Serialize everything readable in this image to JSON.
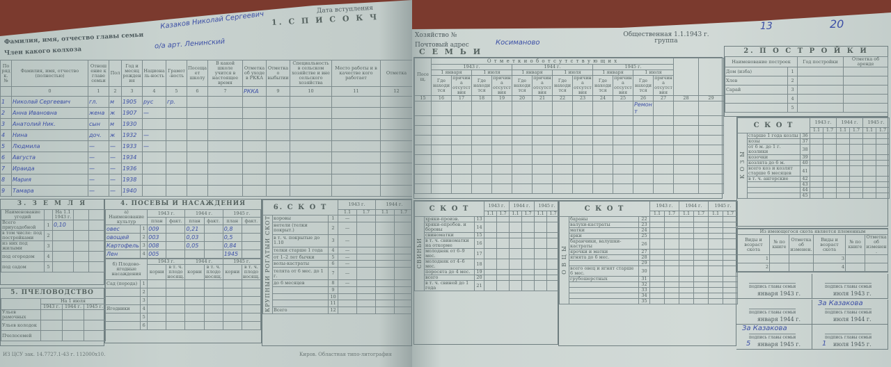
{
  "left_page": {
    "head_name_label": "Фамилия, имя, отчество главы семьи",
    "head_name_value": "Казаков Николай Сергеевич",
    "kolkhoz_label": "Член какого колхоза",
    "kolkhoz_value": "о/а   арт.   Ленинский",
    "entry_date_label": "Дата вступления",
    "section1_title": "1.   С П И С О К   Ч",
    "members": {
      "headers": [
        "Порядк. №",
        "Фамилия, имя, отчество (полностью)",
        "Отношение к главе семьи",
        "Пол",
        "Год и месяц рождения",
        "Националь-ность",
        "Грамот-ность",
        "Посещает школу",
        "В какой школе учится в настоящее время",
        "Отметка об уходе в РККА",
        "Отметка о выбытии",
        "Специальность в сельском хозяйстве и вне сельского хозяйства",
        "Место работы и в качестве кого работает",
        "Отметка"
      ],
      "col_numbers": [
        "",
        "0",
        "1",
        "2",
        "3",
        "4",
        "5",
        "6",
        "7",
        "8",
        "9",
        "10",
        "11",
        "12"
      ],
      "rkka_mark": "РККА",
      "rows": [
        {
          "n": "1",
          "name": "Николай Сергеевич",
          "rel": "гл.",
          "sex": "м",
          "year": "1905",
          "nat": "рус",
          "lit": "гр."
        },
        {
          "n": "2",
          "name": "Анна Ивановна",
          "rel": "жена",
          "sex": "ж",
          "year": "1907",
          "nat": "—",
          "lit": ""
        },
        {
          "n": "3",
          "name": "Анатолий Ник.",
          "rel": "сын",
          "sex": "м",
          "year": "1930",
          "nat": "",
          "lit": ""
        },
        {
          "n": "4",
          "name": "Нина",
          "rel": "доч.",
          "sex": "ж",
          "year": "1932",
          "nat": "—",
          "lit": ""
        },
        {
          "n": "5",
          "name": "Людмила",
          "rel": "—",
          "sex": "—",
          "year": "1933",
          "nat": "—",
          "lit": ""
        },
        {
          "n": "6",
          "name": "Августа",
          "rel": "—",
          "sex": "—",
          "year": "1934",
          "nat": "",
          "lit": ""
        },
        {
          "n": "7",
          "name": "Ираида",
          "rel": "—",
          "sex": "—",
          "year": "1936",
          "nat": "",
          "lit": ""
        },
        {
          "n": "8",
          "name": "Мария",
          "rel": "—",
          "sex": "—",
          "year": "1938",
          "nat": "",
          "lit": ""
        },
        {
          "n": "9",
          "name": "Тамара",
          "rel": "—",
          "sex": "—",
          "year": "1940",
          "nat": "",
          "lit": ""
        }
      ]
    },
    "land": {
      "title": "3.  З Е М Л Я",
      "col_header": "Наименование угодий",
      "col_date": "На 1.1 1943 г.",
      "rows": [
        {
          "label": "Всего приусадебной",
          "n": "1",
          "v": "0,10"
        },
        {
          "label": "в том числе: под постройками",
          "n": "2",
          "v": ""
        },
        {
          "label": "из них под жилыми",
          "n": "3",
          "v": ""
        },
        {
          "label": "под огородом",
          "n": "4",
          "v": ""
        },
        {
          "label": "под садом",
          "n": "5",
          "v": ""
        }
      ]
    },
    "crops": {
      "title": "4. ПОСЕВЫ И НАСАЖДЕНИЯ",
      "sub_a": "а) Наименование культур",
      "years": [
        "1943 г.",
        "1944 г.",
        "1945 г."
      ],
      "plan_fact": [
        "план",
        "факт."
      ],
      "rows": [
        {
          "n": "1",
          "name": "овес",
          "v43": "009",
          "v44": "0,21",
          "v45": "0,8"
        },
        {
          "n": "2",
          "name": "овощей",
          "v43": "003",
          "v44": "0,03",
          "v45": "0,5"
        },
        {
          "n": "3",
          "name": "Картофель",
          "v43": "008",
          "v44": "0,05",
          "v45": "0,84"
        },
        {
          "n": "4",
          "name": "Лен",
          "v43": "005",
          "v44": "",
          "v45": "1945"
        }
      ],
      "sub_b": "б) Плодово-ягодные насаждения",
      "b_cols": [
        "корни",
        "в т. ч. плодоносящ."
      ],
      "b_rows": [
        {
          "n": "1",
          "name": "Сад (порода)"
        },
        {
          "n": "2",
          "name": ""
        },
        {
          "n": "3",
          "name": ""
        },
        {
          "n": "4",
          "name": "Ягодники"
        },
        {
          "n": "5",
          "name": ""
        },
        {
          "n": "6",
          "name": ""
        }
      ]
    },
    "bees": {
      "title": "5.  ПЧЕЛОВОДСТВО",
      "col_header": "На 1 июля",
      "years": [
        "1943 г.",
        "1944 г.",
        "1945 г."
      ],
      "rows": [
        "Ульев рамочных",
        "Ульев колодок",
        "Пчелосемей"
      ]
    },
    "cattle": {
      "title": "6.  С К О Т",
      "side_label": "КРУПНЫЙ РОГАТЫЙ СКОТ",
      "years": [
        "1943 г.",
        "1944 г."
      ],
      "dates": [
        "1.1",
        "1.7"
      ],
      "rows": [
        {
          "n": "1",
          "label": "коровы",
          "v": "—"
        },
        {
          "n": "2",
          "label": "нетели (телки покрыт.)",
          "v": "—"
        },
        {
          "n": "3",
          "label": "в т. ч. покрытые до 1.10",
          "v": "—"
        },
        {
          "n": "4",
          "label": "телки старше 1 года",
          "v": "—"
        },
        {
          "n": "5",
          "label": "от 1–2 лет  бычки",
          "v": "—"
        },
        {
          "n": "6",
          "label": "волы-кастраты",
          "v": "—"
        },
        {
          "n": "7",
          "label": "телята от 6 мес. до 1 г.",
          "v": "—"
        },
        {
          "n": "8",
          "label": "до 6 месяцев",
          "v": "—"
        },
        {
          "n": "9",
          "label": "",
          "v": ""
        },
        {
          "n": "10",
          "label": "",
          "v": ""
        },
        {
          "n": "11",
          "label": "",
          "v": ""
        },
        {
          "n": "12",
          "label": "Всего",
          "v": ""
        }
      ]
    },
    "footer_left": "ИЗ ЦСУ зак. 14.7727.1-43 г. 112000х10.",
    "footer_printer": "Киров. Областная типо-литография"
  },
  "right_page": {
    "household_label": "Хозяйство №",
    "address_label": "Почтовый адрес",
    "address_value": "Косиманово",
    "group_label": "Общественная 1.1.1943 г. группа",
    "group_value_1": "13",
    "group_value_2": "20",
    "family_title": "С Е М Ь И",
    "absence_title": "О т м е т к и   о б   о т с у т с т в у ю щ и х",
    "absence_years": [
      "1943 г.",
      "1944 г.",
      "1945 г."
    ],
    "absence_dates": [
      "1 января",
      "1 июля",
      "1 января",
      "1 июля",
      "1 января",
      "1 июля"
    ],
    "absence_sub": [
      "Где находится",
      "причина отсутствия"
    ],
    "col_numbers": [
      "15",
      "16",
      "17",
      "18",
      "19",
      "20",
      "21",
      "22",
      "23",
      "24",
      "25",
      "26",
      "27",
      "28",
      "29"
    ],
    "absence_mark": "Ремонт",
    "buildings": {
      "title": "2.  П О С Т Р О Й К И",
      "cols": [
        "Наименование построек",
        "Год постройки",
        "Отметка об аренде"
      ],
      "rows": [
        {
          "n": "1",
          "label": "Дом (изба)"
        },
        {
          "n": "2",
          "label": "Хлев"
        },
        {
          "n": "3",
          "label": "Сарай"
        },
        {
          "n": "4",
          "label": ""
        },
        {
          "n": "5",
          "label": ""
        }
      ]
    },
    "goats": {
      "title": "С К О Т",
      "side_label": "К О З Ы",
      "years": [
        "1943 г.",
        "1944 г.",
        "1945 г."
      ],
      "dates": [
        "1.1",
        "1.7"
      ],
      "rows": [
        {
          "n": "36",
          "label": "старше 1 года  козлы"
        },
        {
          "n": "37",
          "label": "козы"
        },
        {
          "n": "38",
          "label": "от 6 м. до 1 г. козлики"
        },
        {
          "n": "39",
          "label": "козочки"
        },
        {
          "n": "40",
          "label": "козлята до 6 м."
        },
        {
          "n": "41",
          "label": "всего коз и козлят старше 6 месяцев"
        },
        {
          "n": "42",
          "label": "в т. ч. ангорские"
        },
        {
          "n": "43",
          "label": ""
        },
        {
          "n": "44",
          "label": ""
        },
        {
          "n": "45",
          "label": ""
        }
      ],
      "mark": "/"
    },
    "pigs": {
      "title": "С К О Т",
      "side_label": "СВИНЬИ",
      "years": [
        "1943 г.",
        "1944 г.",
        "1945 г."
      ],
      "dates": [
        "1.1",
        "1.7"
      ],
      "rows": [
        {
          "n": "13",
          "label": "хряки-произв."
        },
        {
          "n": "14",
          "label": "хряки-опробов. и боровы"
        },
        {
          "n": "15",
          "label": "свиноматки"
        },
        {
          "n": "16",
          "label": "в т. ч. свиноматки на откорме"
        },
        {
          "n": "17",
          "label": "молодняк от 6–9 мес."
        },
        {
          "n": "18",
          "label": "молодняк от 4–6 мес."
        },
        {
          "n": "19",
          "label": "поросята до 4 мес."
        },
        {
          "n": "20",
          "label": "всего"
        },
        {
          "n": "21",
          "label": "в т. ч. свиней до 1 года"
        }
      ]
    },
    "sheep": {
      "title": "С К О Т",
      "side_label": "О В Ц Ы",
      "years": [
        "1943 г.",
        "1944 г.",
        "1945 г."
      ],
      "dates": [
        "1.1",
        "1.7"
      ],
      "rows": [
        {
          "n": "22",
          "label": "бараны"
        },
        {
          "n": "23",
          "label": "валухи-кастраты"
        },
        {
          "n": "24",
          "label": "матки"
        },
        {
          "n": "25",
          "label": "ярки"
        },
        {
          "n": "26",
          "label": "баранчики, валушки-кастраты"
        },
        {
          "n": "27",
          "label": "ярочки и матки"
        },
        {
          "n": "28",
          "label": "ягнята до 6 мес."
        },
        {
          "n": "29",
          "label": ""
        },
        {
          "n": "30",
          "label": "всего овец и ягнят старше 6 мес."
        },
        {
          "n": "31",
          "label": "грубошерстных"
        },
        {
          "n": "32",
          "label": ""
        },
        {
          "n": "33",
          "label": ""
        },
        {
          "n": "34",
          "label": ""
        },
        {
          "n": "35",
          "label": ""
        }
      ]
    },
    "breeding": {
      "title": "Из имеющегося скота является племенным",
      "cols": [
        "Виды и возраст скота",
        "№ по книге",
        "Отметка об изменен.",
        "Виды и возраст скота",
        "№ по книге",
        "Отметка об изменен."
      ],
      "rows": [
        [
          "1",
          "3"
        ],
        [
          "2",
          "4"
        ]
      ]
    },
    "signatures": {
      "caption": "подпись главы семьи",
      "items": [
        {
          "date": "января 1943 г.",
          "sign": "",
          "day": ""
        },
        {
          "date": "июля 1943 г.",
          "sign": "",
          "day": ""
        },
        {
          "date": "января 1944 г.",
          "sign": "",
          "day": ""
        },
        {
          "date": "июля 1944 г.",
          "sign": "За Казакова",
          "day": ""
        },
        {
          "date": "января 1945 г.",
          "sign": "За Казакова",
          "day": "5"
        },
        {
          "date": "июля 1945 г.",
          "sign": "",
          "day": "1"
        }
      ]
    }
  }
}
